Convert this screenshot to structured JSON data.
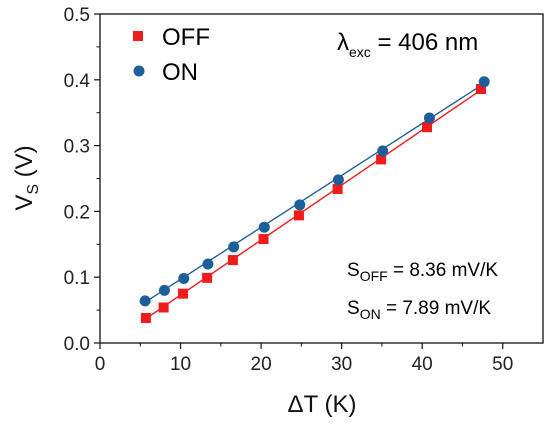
{
  "chart_data": {
    "type": "scatter",
    "xlabel": {
      "main": "ΔT (K)"
    },
    "ylabel": {
      "main": "V",
      "sub": "S",
      "unit": " (V)"
    },
    "xlim": [
      0,
      55
    ],
    "ylim": [
      0,
      0.5
    ],
    "xticks": [
      "0",
      "10",
      "20",
      "30",
      "40",
      "50"
    ],
    "yticks": [
      "0.0",
      "0.1",
      "0.2",
      "0.3",
      "0.4",
      "0.5"
    ],
    "xtick_values": [
      0,
      10,
      20,
      30,
      40,
      50
    ],
    "ytick_values": [
      0,
      0.1,
      0.2,
      0.3,
      0.4,
      0.5
    ],
    "grid": false,
    "legend_position": "top-left",
    "series": [
      {
        "name": "OFF",
        "marker": "square",
        "color": "#ee1c1c",
        "x": [
          5.7,
          7.9,
          10.3,
          13.3,
          16.5,
          20.3,
          24.7,
          29.5,
          34.9,
          40.6,
          47.3
        ],
        "y": [
          0.038,
          0.054,
          0.075,
          0.099,
          0.126,
          0.158,
          0.194,
          0.234,
          0.279,
          0.328,
          0.386
        ],
        "fit": {
          "x": [
            5.7,
            47.6
          ],
          "y": [
            0.037,
            0.387
          ]
        }
      },
      {
        "name": "ON",
        "marker": "circle",
        "color": "#1f5f99",
        "x": [
          5.6,
          8.0,
          10.4,
          13.4,
          16.6,
          20.4,
          24.8,
          29.6,
          35.1,
          40.9,
          47.7
        ],
        "y": [
          0.064,
          0.08,
          0.098,
          0.12,
          0.146,
          0.176,
          0.21,
          0.248,
          0.292,
          0.342,
          0.397
        ],
        "fit": {
          "x": [
            5.6,
            47.9
          ],
          "y": [
            0.062,
            0.396
          ]
        }
      }
    ],
    "annotations": {
      "wavelength": {
        "prefix": "λ",
        "sub": "exc",
        "rest": " = 406 nm"
      },
      "s_off": {
        "prefix": "S",
        "sub": "OFF",
        "rest": " = 8.36 mV/K"
      },
      "s_on": {
        "prefix": "S",
        "sub": "ON",
        "rest": " = 7.89 mV/K"
      }
    }
  }
}
